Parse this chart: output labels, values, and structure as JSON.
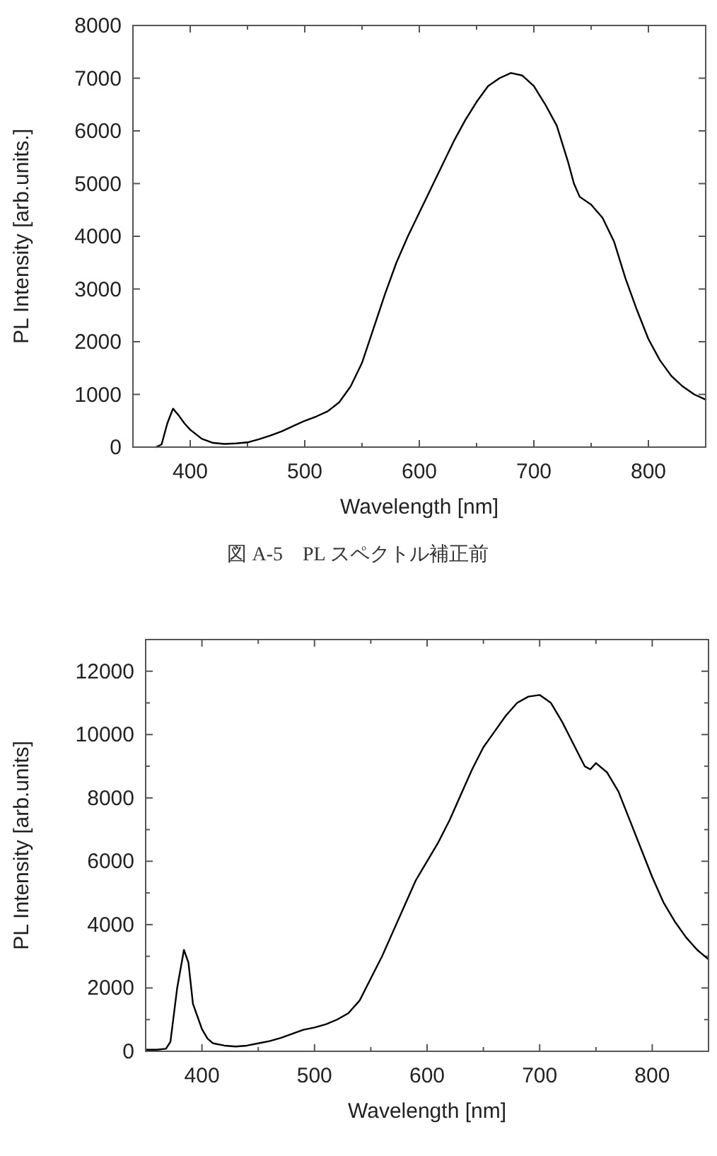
{
  "chart_data": [
    {
      "type": "line",
      "xlabel": "Wavelength [nm]",
      "ylabel": "PL Intensity [arb.units.]",
      "annotations": [
        "図 A-5　PL スペクトル補正前"
      ],
      "xlim": [
        350,
        850
      ],
      "ylim": [
        0,
        8000
      ],
      "xticks": [
        400,
        {
          "value": 450,
          "label": null
        },
        500,
        {
          "value": 550,
          "label": null
        },
        600,
        {
          "value": 650,
          "label": null
        },
        700,
        {
          "value": 750,
          "label": null
        },
        800
      ],
      "yticks": [
        0,
        1000,
        2000,
        3000,
        4000,
        5000,
        6000,
        7000,
        8000
      ],
      "series": [
        {
          "color": "#000000",
          "x": [
            370,
            375,
            380,
            385,
            390,
            395,
            400,
            410,
            420,
            430,
            440,
            450,
            460,
            470,
            480,
            490,
            500,
            510,
            520,
            530,
            540,
            550,
            560,
            570,
            580,
            590,
            600,
            610,
            620,
            630,
            640,
            650,
            660,
            670,
            680,
            690,
            700,
            710,
            720,
            730,
            735,
            740,
            750,
            760,
            770,
            780,
            790,
            800,
            810,
            820,
            830,
            840,
            850
          ],
          "values": [
            0,
            50,
            450,
            730,
            600,
            450,
            330,
            160,
            80,
            60,
            70,
            90,
            150,
            220,
            300,
            400,
            500,
            580,
            680,
            850,
            1150,
            1600,
            2250,
            2900,
            3500,
            4000,
            4450,
            4900,
            5350,
            5800,
            6200,
            6550,
            6850,
            7000,
            7100,
            7050,
            6850,
            6500,
            6100,
            5400,
            5000,
            4750,
            4600,
            4350,
            3900,
            3200,
            2600,
            2050,
            1650,
            1350,
            1150,
            1000,
            900
          ]
        }
      ]
    },
    {
      "type": "line",
      "xlabel": "Wavelength [nm]",
      "ylabel": "PL Intensity [arb.units]",
      "xlim": [
        350,
        850
      ],
      "ylim": [
        0,
        13000
      ],
      "xticks": [
        400,
        {
          "value": 450,
          "label": null
        },
        500,
        {
          "value": 550,
          "label": null
        },
        600,
        {
          "value": 650,
          "label": null
        },
        700,
        {
          "value": 750,
          "label": null
        },
        800
      ],
      "yticks": [
        0,
        {
          "value": 1000,
          "label": null
        },
        2000,
        {
          "value": 3000,
          "label": null
        },
        4000,
        {
          "value": 5000,
          "label": null
        },
        6000,
        {
          "value": 7000,
          "label": null
        },
        8000,
        {
          "value": 9000,
          "label": null
        },
        10000,
        {
          "value": 11000,
          "label": null
        },
        12000
      ],
      "series": [
        {
          "color": "#000000",
          "x": [
            350,
            360,
            368,
            372,
            378,
            384,
            388,
            392,
            396,
            400,
            405,
            410,
            420,
            430,
            440,
            450,
            460,
            470,
            480,
            490,
            500,
            510,
            520,
            530,
            540,
            550,
            560,
            570,
            580,
            590,
            600,
            610,
            620,
            630,
            640,
            650,
            660,
            670,
            680,
            690,
            700,
            710,
            720,
            730,
            740,
            745,
            750,
            760,
            770,
            780,
            790,
            800,
            810,
            820,
            830,
            840,
            850
          ],
          "values": [
            50,
            50,
            80,
            300,
            2000,
            3200,
            2800,
            1500,
            1100,
            700,
            400,
            250,
            180,
            150,
            180,
            250,
            320,
            420,
            550,
            680,
            750,
            850,
            1000,
            1200,
            1600,
            2300,
            3000,
            3800,
            4600,
            5400,
            6000,
            6600,
            7300,
            8100,
            8900,
            9600,
            10100,
            10600,
            11000,
            11200,
            11250,
            11000,
            10400,
            9700,
            9000,
            8900,
            9100,
            8800,
            8200,
            7300,
            6400,
            5500,
            4700,
            4100,
            3600,
            3200,
            2900
          ]
        }
      ]
    }
  ]
}
